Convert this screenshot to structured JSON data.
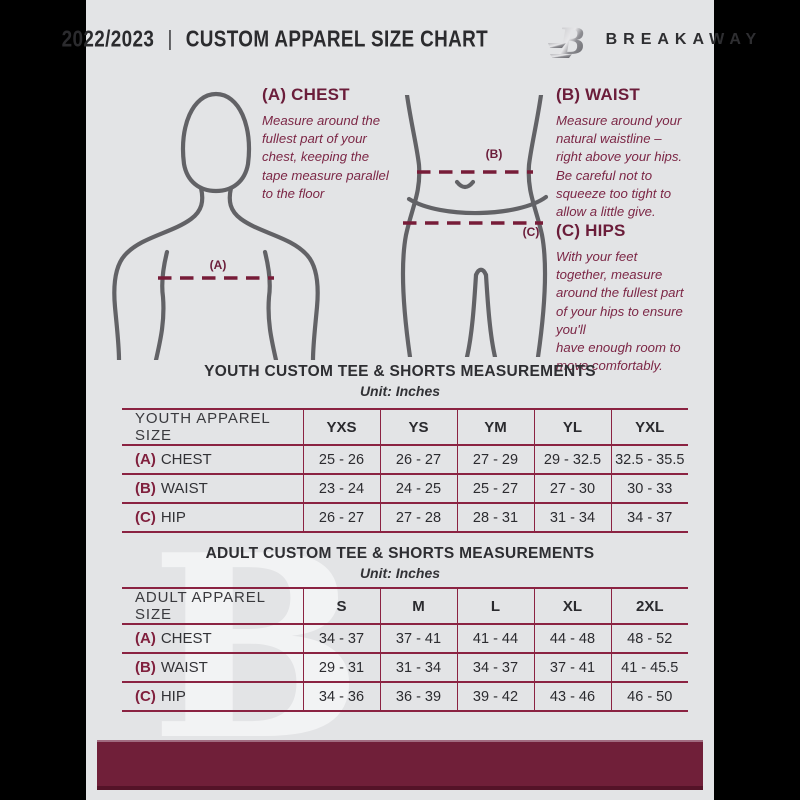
{
  "header": {
    "year": "2022/2023",
    "separator": "|",
    "title": "CUSTOM APPAREL SIZE CHART",
    "brand": "BREAKAWAY",
    "logo_letter": "B"
  },
  "measure_guide": {
    "chest": {
      "heading": "(A) CHEST",
      "body": "Measure around the\nfullest part of your\nchest, keeping the\ntape measure parallel\nto the floor"
    },
    "waist": {
      "heading": "(B) WAIST",
      "body": "Measure around your\nnatural waistline –\nright above your hips.\nBe careful not to\nsqueeze too tight to\nallow a little give."
    },
    "hips": {
      "heading": "(C) HIPS",
      "body": "With your feet\ntogether, measure\naround the fullest part\nof your hips to ensure\nyou'll\nhave enough room to\nmove comfortably."
    },
    "labels": {
      "chest": "(A)",
      "waist": "(B)",
      "hips": "(C)"
    }
  },
  "youth_table": {
    "title": "YOUTH CUSTOM TEE & SHORTS MEASUREMENTS",
    "unit": "Unit: Inches",
    "header": [
      "YOUTH APPAREL SIZE",
      "YXS",
      "YS",
      "YM",
      "YL",
      "YXL"
    ],
    "rows": [
      {
        "prefix": "(A)",
        "label": "CHEST",
        "values": [
          "25 - 26",
          "26 - 27",
          "27 - 29",
          "29 - 32.5",
          "32.5 - 35.5"
        ]
      },
      {
        "prefix": "(B)",
        "label": "WAIST",
        "values": [
          "23 - 24",
          "24 - 25",
          "25 - 27",
          "27 - 30",
          "30 - 33"
        ]
      },
      {
        "prefix": "(C)",
        "label": "HIP",
        "values": [
          "26 - 27",
          "27 - 28",
          "28 - 31",
          "31 - 34",
          "34 - 37"
        ]
      }
    ]
  },
  "adult_table": {
    "title": "ADULT CUSTOM TEE & SHORTS MEASUREMENTS",
    "unit": "Unit: Inches",
    "header": [
      "ADULT APPAREL SIZE",
      "S",
      "M",
      "L",
      "XL",
      "2XL"
    ],
    "rows": [
      {
        "prefix": "(A)",
        "label": "CHEST",
        "values": [
          "34 - 37",
          "37 - 41",
          "41 - 44",
          "44 - 48",
          "48 - 52"
        ]
      },
      {
        "prefix": "(B)",
        "label": "WAIST",
        "values": [
          "29 - 31",
          "31 - 34",
          "34 - 37",
          "37 - 41",
          "41 - 45.5"
        ]
      },
      {
        "prefix": "(C)",
        "label": "HIP",
        "values": [
          "34 - 36",
          "36 - 39",
          "39 - 42",
          "43 - 46",
          "46 - 50"
        ]
      }
    ]
  },
  "watermark": "B",
  "colors": {
    "accent_maroon": "#701f39",
    "table_line": "#8b2342",
    "page_background": "#e3e4e6",
    "figure_gray": "#626266"
  }
}
